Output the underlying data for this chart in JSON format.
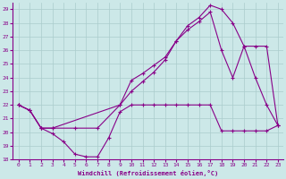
{
  "xlabel": "Windchill (Refroidissement éolien,°C)",
  "xlim": [
    -0.5,
    23.5
  ],
  "ylim": [
    18,
    29.5
  ],
  "yticks": [
    18,
    19,
    20,
    21,
    22,
    23,
    24,
    25,
    26,
    27,
    28,
    29
  ],
  "xticks": [
    0,
    1,
    2,
    3,
    4,
    5,
    6,
    7,
    8,
    9,
    10,
    11,
    12,
    13,
    14,
    15,
    16,
    17,
    18,
    19,
    20,
    21,
    22,
    23
  ],
  "bg_color": "#cce8e8",
  "grid_color": "#aacccc",
  "line_color": "#880088",
  "line1_x": [
    0,
    1,
    2,
    3,
    4,
    5,
    6,
    7,
    8,
    9,
    10,
    11,
    12,
    13,
    14,
    15,
    16,
    17,
    18,
    19,
    20,
    21,
    22,
    23
  ],
  "line1_y": [
    22.0,
    21.6,
    20.3,
    19.9,
    19.3,
    18.4,
    18.2,
    18.2,
    19.6,
    21.5,
    22.0,
    22.0,
    22.0,
    22.0,
    22.0,
    22.0,
    22.0,
    22.0,
    20.1,
    20.1,
    20.1,
    20.1,
    20.1,
    20.5
  ],
  "line2_x": [
    0,
    1,
    2,
    3,
    5,
    7,
    9,
    10,
    11,
    12,
    13,
    14,
    15,
    16,
    17,
    18,
    19,
    20,
    21,
    22,
    23
  ],
  "line2_y": [
    22.0,
    21.6,
    20.3,
    20.3,
    20.3,
    20.3,
    22.0,
    23.8,
    24.3,
    24.9,
    25.5,
    26.7,
    27.8,
    28.4,
    29.3,
    29.0,
    28.0,
    26.3,
    24.0,
    22.0,
    20.5
  ],
  "line3_x": [
    0,
    1,
    2,
    3,
    9,
    10,
    11,
    12,
    13,
    14,
    15,
    16,
    17,
    18,
    19,
    20,
    21,
    22,
    23
  ],
  "line3_y": [
    22.0,
    21.6,
    20.3,
    20.3,
    22.0,
    23.0,
    23.7,
    24.4,
    25.3,
    26.7,
    27.5,
    28.1,
    28.8,
    26.0,
    24.0,
    26.3,
    26.3,
    26.3,
    20.5
  ]
}
